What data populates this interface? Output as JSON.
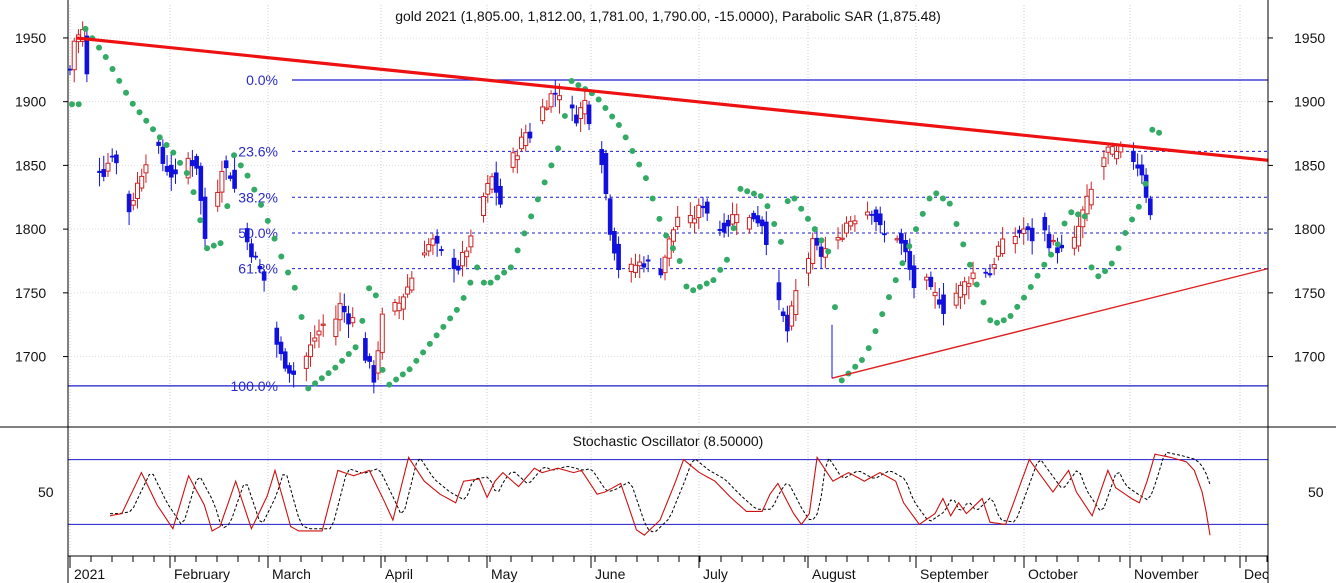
{
  "chart_data": {
    "type": "candlestick",
    "title": "gold 2021 (1,805.00, 1,812.00, 1,781.00, 1,790.00, -15.0000), Parabolic SAR (1,875.48)",
    "oscillator_title": "Stochastic Oscillator (8.50000)",
    "price_ticks": [
      "1950",
      "1900",
      "1850",
      "1800",
      "1750",
      "1700"
    ],
    "osc_ticks": [
      "50"
    ],
    "months": [
      "2021",
      "February",
      "March",
      "April",
      "May",
      "June",
      "July",
      "August",
      "September",
      "October",
      "November",
      "Dec"
    ],
    "ylim": [
      1660,
      1968
    ],
    "osc_ylim": [
      0,
      100
    ],
    "osc_levels": [
      80,
      20
    ],
    "fibonacci": [
      {
        "label": "0.0%",
        "value": 1917
      },
      {
        "label": "23.6%",
        "value": 1861
      },
      {
        "label": "38.2%",
        "value": 1825
      },
      {
        "label": "50.0%",
        "value": 1797
      },
      {
        "label": "61.8%",
        "value": 1769
      },
      {
        "label": "100.0%",
        "value": 1677
      }
    ],
    "trendlines": [
      {
        "name": "resistance",
        "color": "#ee1111",
        "from": {
          "day": 0,
          "y": 1950
        },
        "to": {
          "day": 232,
          "y": 1854
        }
      },
      {
        "name": "support",
        "color": "#dd2222",
        "from": {
          "day": 150,
          "y": 1683
        },
        "to": {
          "day": 232,
          "y": 1769
        }
      }
    ],
    "colors": {
      "up": "#cc2222",
      "down": "#1111dd",
      "sar": "#33aa66",
      "fib": "#1c1ccc",
      "k_line": "#cc1111",
      "d_line": "#000000"
    },
    "grid": true,
    "anchors": [
      [
        0,
        1925
      ],
      [
        1,
        1948
      ],
      [
        3,
        1955
      ],
      [
        4,
        1920
      ],
      [
        6,
        1850
      ],
      [
        8,
        1845
      ],
      [
        10,
        1860
      ],
      [
        12,
        1843
      ],
      [
        14,
        1815
      ],
      [
        16,
        1835
      ],
      [
        18,
        1855
      ],
      [
        20,
        1870
      ],
      [
        22,
        1852
      ],
      [
        24,
        1843
      ],
      [
        26,
        1835
      ],
      [
        28,
        1855
      ],
      [
        30,
        1850
      ],
      [
        32,
        1793
      ],
      [
        34,
        1815
      ],
      [
        36,
        1850
      ],
      [
        38,
        1843
      ],
      [
        40,
        1820
      ],
      [
        42,
        1790
      ],
      [
        44,
        1775
      ],
      [
        46,
        1760
      ],
      [
        48,
        1720
      ],
      [
        50,
        1700
      ],
      [
        52,
        1690
      ],
      [
        54,
        1683
      ],
      [
        56,
        1700
      ],
      [
        58,
        1715
      ],
      [
        60,
        1725
      ],
      [
        62,
        1720
      ],
      [
        64,
        1740
      ],
      [
        66,
        1730
      ],
      [
        68,
        1728
      ],
      [
        70,
        1700
      ],
      [
        72,
        1683
      ],
      [
        74,
        1730
      ],
      [
        76,
        1735
      ],
      [
        78,
        1742
      ],
      [
        80,
        1755
      ],
      [
        82,
        1770
      ],
      [
        84,
        1785
      ],
      [
        86,
        1790
      ],
      [
        88,
        1780
      ],
      [
        90,
        1775
      ],
      [
        92,
        1770
      ],
      [
        94,
        1785
      ],
      [
        96,
        1795
      ],
      [
        98,
        1825
      ],
      [
        100,
        1840
      ],
      [
        102,
        1820
      ],
      [
        104,
        1850
      ],
      [
        106,
        1862
      ],
      [
        108,
        1876
      ],
      [
        110,
        1872
      ],
      [
        112,
        1895
      ],
      [
        114,
        1905
      ],
      [
        116,
        1908
      ],
      [
        118,
        1895
      ],
      [
        120,
        1888
      ],
      [
        122,
        1900
      ],
      [
        124,
        1875
      ],
      [
        126,
        1855
      ],
      [
        128,
        1800
      ],
      [
        130,
        1770
      ],
      [
        132,
        1765
      ],
      [
        134,
        1772
      ],
      [
        136,
        1774
      ],
      [
        138,
        1770
      ],
      [
        140,
        1768
      ],
      [
        142,
        1790
      ],
      [
        144,
        1810
      ],
      [
        146,
        1802
      ],
      [
        148,
        1810
      ],
      [
        150,
        1820
      ],
      [
        152,
        1808
      ],
      [
        154,
        1800
      ],
      [
        156,
        1805
      ],
      [
        158,
        1815
      ],
      [
        160,
        1805
      ],
      [
        162,
        1810
      ],
      [
        164,
        1805
      ],
      [
        166,
        1780
      ],
      [
        168,
        1740
      ],
      [
        170,
        1720
      ],
      [
        172,
        1750
      ],
      [
        174,
        1768
      ],
      [
        176,
        1788
      ],
      [
        178,
        1780
      ],
      [
        180,
        1788
      ],
      [
        182,
        1790
      ],
      [
        184,
        1805
      ],
      [
        186,
        1810
      ],
      [
        188,
        1815
      ],
      [
        190,
        1815
      ],
      [
        192,
        1800
      ],
      [
        194,
        1790
      ],
      [
        196,
        1795
      ],
      [
        198,
        1780
      ],
      [
        200,
        1755
      ],
      [
        202,
        1765
      ],
      [
        204,
        1750
      ],
      [
        206,
        1745
      ],
      [
        208,
        1730
      ],
      [
        210,
        1750
      ],
      [
        212,
        1757
      ],
      [
        214,
        1765
      ],
      [
        216,
        1770
      ],
      [
        218,
        1765
      ],
      [
        220,
        1785
      ],
      [
        222,
        1790
      ],
      [
        224,
        1795
      ],
      [
        226,
        1800
      ],
      [
        228,
        1793
      ],
      [
        230,
        1805
      ],
      [
        232,
        1790
      ],
      [
        234,
        1785
      ],
      [
        236,
        1780
      ],
      [
        238,
        1790
      ],
      [
        240,
        1813
      ],
      [
        242,
        1830
      ],
      [
        244,
        1850
      ],
      [
        246,
        1862
      ],
      [
        248,
        1858
      ],
      [
        250,
        1865
      ],
      [
        252,
        1855
      ],
      [
        254,
        1845
      ],
      [
        256,
        1810
      ],
      [
        258,
        1790
      ]
    ],
    "sar_anchors": [
      [
        0,
        1898
      ],
      [
        2,
        1898
      ],
      [
        3,
        1958
      ],
      [
        8,
        1935
      ],
      [
        14,
        1900
      ],
      [
        20,
        1875
      ],
      [
        24,
        1860
      ],
      [
        28,
        1840
      ],
      [
        32,
        1785
      ],
      [
        36,
        1790
      ],
      [
        38,
        1860
      ],
      [
        42,
        1840
      ],
      [
        46,
        1810
      ],
      [
        50,
        1775
      ],
      [
        54,
        1745
      ],
      [
        56,
        1675
      ],
      [
        62,
        1690
      ],
      [
        68,
        1710
      ],
      [
        70,
        1755
      ],
      [
        72,
        1748
      ],
      [
        74,
        1675
      ],
      [
        80,
        1690
      ],
      [
        86,
        1715
      ],
      [
        92,
        1740
      ],
      [
        96,
        1770
      ],
      [
        98,
        1755
      ],
      [
        104,
        1770
      ],
      [
        110,
        1820
      ],
      [
        116,
        1870
      ],
      [
        118,
        1917
      ],
      [
        124,
        1905
      ],
      [
        130,
        1880
      ],
      [
        136,
        1840
      ],
      [
        140,
        1800
      ],
      [
        144,
        1775
      ],
      [
        146,
        1750
      ],
      [
        152,
        1760
      ],
      [
        156,
        1780
      ],
      [
        158,
        1832
      ],
      [
        164,
        1825
      ],
      [
        168,
        1790
      ],
      [
        170,
        1830
      ],
      [
        176,
        1800
      ],
      [
        180,
        1778
      ],
      [
        182,
        1680
      ],
      [
        188,
        1700
      ],
      [
        194,
        1750
      ],
      [
        200,
        1800
      ],
      [
        204,
        1830
      ],
      [
        208,
        1820
      ],
      [
        214,
        1760
      ],
      [
        218,
        1725
      ],
      [
        222,
        1730
      ],
      [
        226,
        1748
      ],
      [
        230,
        1770
      ],
      [
        234,
        1790
      ],
      [
        236,
        1814
      ],
      [
        240,
        1810
      ],
      [
        242,
        1760
      ],
      [
        246,
        1770
      ],
      [
        250,
        1800
      ],
      [
        254,
        1825
      ],
      [
        256,
        1878
      ],
      [
        258,
        1875
      ]
    ],
    "osc_anchors": [
      [
        0,
        28
      ],
      [
        3,
        30
      ],
      [
        8,
        68
      ],
      [
        12,
        38
      ],
      [
        16,
        16
      ],
      [
        20,
        65
      ],
      [
        24,
        38
      ],
      [
        26,
        14
      ],
      [
        28,
        18
      ],
      [
        32,
        60
      ],
      [
        36,
        16
      ],
      [
        40,
        46
      ],
      [
        42,
        70
      ],
      [
        46,
        18
      ],
      [
        48,
        14
      ],
      [
        54,
        14
      ],
      [
        58,
        70
      ],
      [
        62,
        65
      ],
      [
        66,
        70
      ],
      [
        70,
        40
      ],
      [
        72,
        24
      ],
      [
        76,
        82
      ],
      [
        80,
        60
      ],
      [
        84,
        48
      ],
      [
        88,
        40
      ],
      [
        90,
        60
      ],
      [
        94,
        62
      ],
      [
        96,
        45
      ],
      [
        98,
        60
      ],
      [
        100,
        68
      ],
      [
        104,
        55
      ],
      [
        108,
        72
      ],
      [
        110,
        68
      ],
      [
        114,
        72
      ],
      [
        118,
        68
      ],
      [
        120,
        70
      ],
      [
        124,
        48
      ],
      [
        126,
        50
      ],
      [
        130,
        58
      ],
      [
        134,
        15
      ],
      [
        136,
        10
      ],
      [
        140,
        24
      ],
      [
        144,
        60
      ],
      [
        146,
        80
      ],
      [
        150,
        68
      ],
      [
        154,
        60
      ],
      [
        158,
        45
      ],
      [
        162,
        32
      ],
      [
        166,
        32
      ],
      [
        168,
        48
      ],
      [
        170,
        58
      ],
      [
        172,
        44
      ],
      [
        174,
        30
      ],
      [
        176,
        20
      ],
      [
        178,
        30
      ],
      [
        180,
        82
      ],
      [
        184,
        60
      ],
      [
        188,
        68
      ],
      [
        192,
        60
      ],
      [
        196,
        68
      ],
      [
        200,
        60
      ],
      [
        202,
        40
      ],
      [
        206,
        20
      ],
      [
        210,
        30
      ],
      [
        212,
        44
      ],
      [
        214,
        28
      ],
      [
        216,
        40
      ],
      [
        218,
        30
      ],
      [
        222,
        44
      ],
      [
        224,
        22
      ],
      [
        228,
        20
      ],
      [
        230,
        40
      ],
      [
        234,
        80
      ],
      [
        238,
        60
      ],
      [
        240,
        50
      ],
      [
        244,
        70
      ],
      [
        246,
        50
      ],
      [
        250,
        28
      ],
      [
        254,
        70
      ],
      [
        256,
        54
      ],
      [
        260,
        44
      ],
      [
        262,
        40
      ],
      [
        264,
        60
      ],
      [
        266,
        85
      ],
      [
        270,
        82
      ],
      [
        274,
        78
      ],
      [
        276,
        70
      ],
      [
        278,
        50
      ],
      [
        279,
        32
      ],
      [
        280,
        10
      ]
    ]
  }
}
